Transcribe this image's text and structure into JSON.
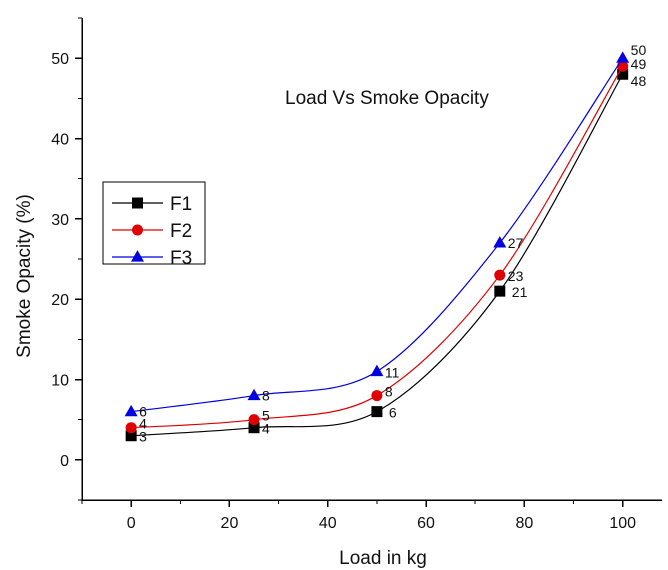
{
  "chart_data": {
    "type": "line",
    "title": "Load Vs Smoke Opacity",
    "xlabel": "Load in kg",
    "ylabel": "Smoke Opacity (%)",
    "x": [
      0,
      25,
      50,
      75,
      100
    ],
    "xlim": [
      -10,
      108
    ],
    "ylim": [
      -5,
      55
    ],
    "xticks": [
      0,
      20,
      40,
      60,
      80,
      100
    ],
    "yticks": [
      0,
      10,
      20,
      30,
      40,
      50
    ],
    "grid": false,
    "legend_position": "middle-left",
    "series": [
      {
        "name": "F1",
        "values": [
          3,
          4,
          6,
          21,
          48
        ],
        "color": "#000000",
        "marker": "square"
      },
      {
        "name": "F2",
        "values": [
          4,
          5,
          8,
          23,
          49
        ],
        "color": "#e00000",
        "marker": "circle"
      },
      {
        "name": "F3",
        "values": [
          6,
          8,
          11,
          27,
          50
        ],
        "color": "#0000e0",
        "marker": "triangle"
      }
    ]
  }
}
